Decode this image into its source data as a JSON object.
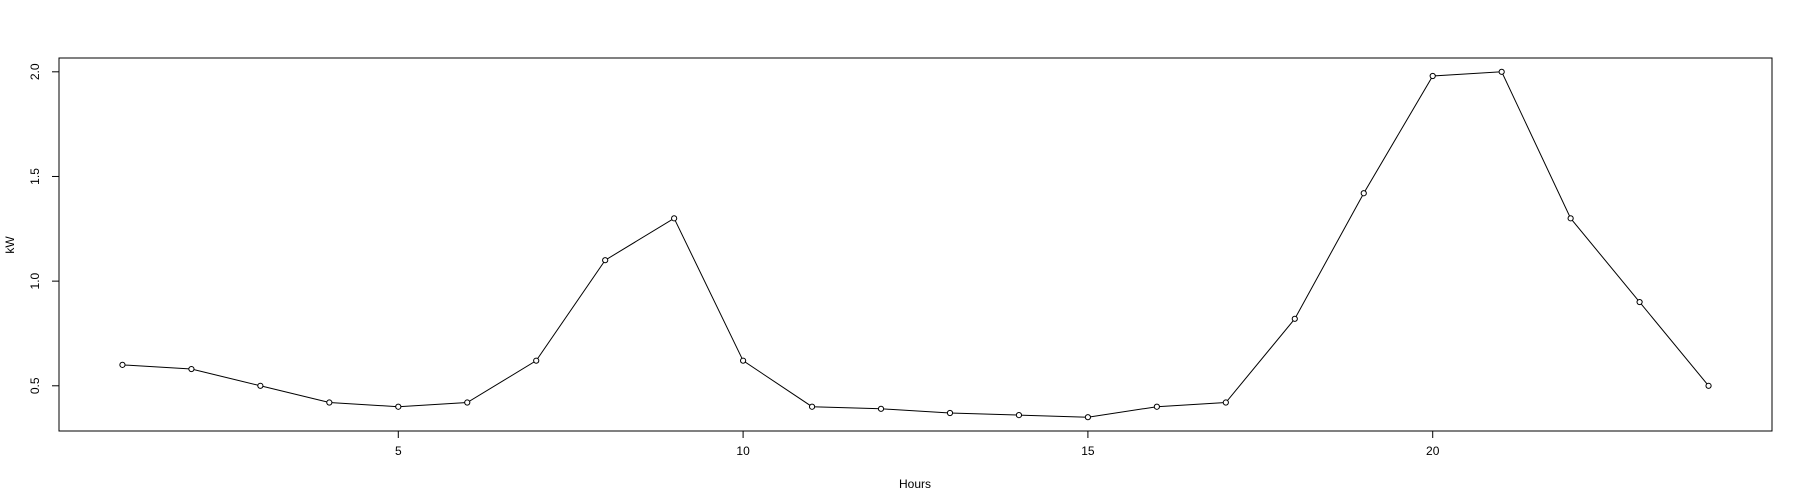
{
  "chart_data": {
    "type": "line",
    "title": "",
    "xlabel": "Hours",
    "ylabel": "kW",
    "x": [
      1,
      2,
      3,
      4,
      5,
      6,
      7,
      8,
      9,
      10,
      11,
      12,
      13,
      14,
      15,
      16,
      17,
      18,
      19,
      20,
      21,
      22,
      23,
      24
    ],
    "series": [
      {
        "values": [
          0.6,
          0.58,
          0.5,
          0.42,
          0.4,
          0.42,
          0.62,
          1.1,
          1.3,
          0.62,
          0.4,
          0.39,
          0.37,
          0.36,
          0.35,
          0.4,
          0.42,
          0.82,
          1.42,
          1.98,
          2.0,
          1.3,
          0.9,
          0.5
        ]
      }
    ],
    "xlim": [
      0.08,
      24.92
    ],
    "ylim": [
      0.284,
      2.066
    ],
    "x_ticks": [
      5,
      10,
      15,
      20
    ],
    "x_tick_labels": [
      "5",
      "10",
      "15",
      "20"
    ],
    "y_ticks": [
      0.5,
      1.0,
      1.5,
      2.0
    ],
    "y_tick_labels": [
      "0.5",
      "1.0",
      "1.5",
      "2.0"
    ],
    "grid": false,
    "legend": "none",
    "markers": "open-circle",
    "line_color": "#000000",
    "marker_color": "#000000"
  }
}
